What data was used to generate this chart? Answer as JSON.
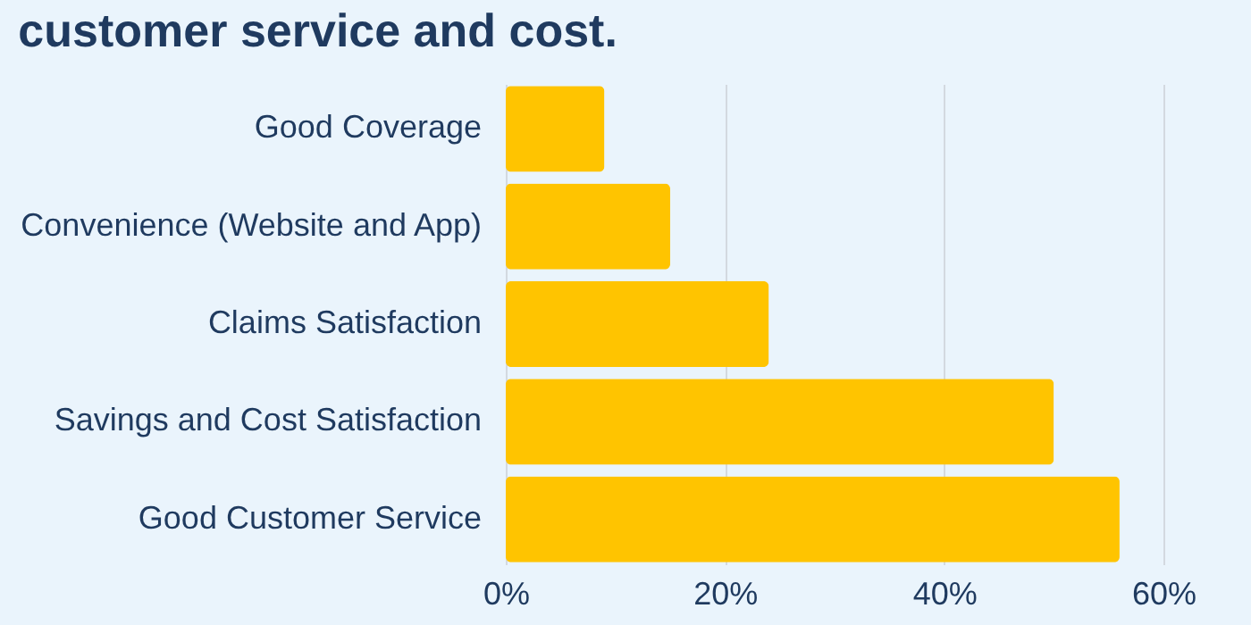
{
  "chart_data": {
    "type": "bar",
    "orientation": "horizontal",
    "title": "customer service and cost.",
    "categories": [
      "Good Coverage",
      "Convenience (Website and App)",
      "Claims Satisfaction",
      "Savings and Cost Satisfaction",
      "Good Customer Service"
    ],
    "values": [
      9,
      15,
      24,
      50,
      56
    ],
    "color": "#ffc400",
    "xlim": [
      0,
      60
    ],
    "xticks": [
      {
        "value": 0,
        "label": "0%"
      },
      {
        "value": 20,
        "label": "20%"
      },
      {
        "value": 40,
        "label": "40%"
      },
      {
        "value": 60,
        "label": "60%"
      }
    ],
    "grid": "x"
  }
}
